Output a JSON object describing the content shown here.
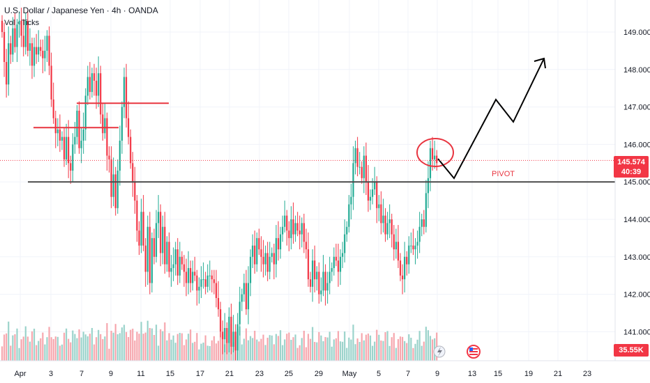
{
  "legend": {
    "title": "U.S. Dollar / Japanese Yen · 4h · OANDA",
    "volume": "Vol · Ticks"
  },
  "price_axis": {
    "ticks": [
      "149.000",
      "148.000",
      "147.000",
      "146.000",
      "145.000",
      "144.000",
      "143.000",
      "142.000",
      "141.000"
    ]
  },
  "time_axis": {
    "ticks": [
      "Apr",
      "3",
      "7",
      "9",
      "11",
      "15",
      "17",
      "21",
      "23",
      "25",
      "29",
      "May",
      "5",
      "7",
      "9",
      "13",
      "15",
      "19",
      "21",
      "23"
    ]
  },
  "current_price": {
    "value": "145.574",
    "countdown": "40:39"
  },
  "volume_badge": "35.55K",
  "annotations": {
    "pivot_label": "PIVOT"
  },
  "colors": {
    "up": "#22ab94",
    "down": "#f23645",
    "up_volume": "#9bd3cb",
    "down_volume": "#f6a7ae",
    "pivot_line": "#4a4a4a",
    "red_line": "#e8343f",
    "arrow": "#000000"
  },
  "icons": [
    "flash-icon",
    "us-flag-icon"
  ],
  "chart_data": {
    "type": "candlestick",
    "ylim": [
      140.2,
      149.9
    ],
    "closes": [
      149.0,
      148.2,
      147.6,
      148.7,
      148.4,
      149.1,
      148.6,
      149.2,
      149.3,
      148.9,
      148.6,
      149.3,
      148.5,
      148.7,
      148.1,
      148.6,
      148.4,
      148.6,
      148.5,
      148.3,
      148.5,
      148.9,
      148.1,
      147.2,
      146.7,
      146.3,
      146.4,
      146.1,
      146.2,
      145.6,
      146.2,
      145.5,
      145.3,
      146.0,
      146.2,
      146.9,
      145.9,
      146.1,
      146.4,
      147.3,
      147.8,
      147.4,
      147.9,
      147.7,
      147.3,
      147.9,
      146.8,
      146.3,
      146.7,
      145.7,
      145.6,
      144.6,
      145.2,
      144.3,
      145.3,
      146.1,
      147.0,
      147.8,
      146.7,
      146.2,
      145.5,
      145.0,
      144.5,
      143.7,
      143.3,
      144.2,
      143.3,
      142.6,
      143.8,
      142.3,
      143.5,
      143.0,
      143.9,
      144.2,
      143.1,
      143.8,
      142.8,
      143.4,
      142.6,
      142.7,
      142.8,
      143.2,
      142.5,
      143.0,
      142.8,
      142.6,
      142.3,
      142.7,
      142.3,
      142.6,
      142.5,
      142.1,
      142.2,
      142.4,
      142.4,
      142.2,
      142.5,
      142.5,
      142.4,
      142.3,
      141.9,
      141.6,
      141.0,
      140.8,
      141.1,
      140.7,
      141.4,
      140.6,
      141.0,
      140.5,
      141.2,
      141.8,
      142.0,
      142.3,
      141.6,
      142.3,
      143.0,
      143.3,
      142.8,
      143.5,
      143.2,
      143.0,
      142.8,
      143.1,
      142.6,
      143.0,
      143.1,
      142.8,
      143.5,
      143.2,
      143.6,
      143.8,
      144.1,
      143.7,
      143.5,
      144.0,
      143.6,
      143.9,
      143.7,
      143.6,
      143.9,
      143.4,
      143.2,
      142.4,
      142.2,
      142.9,
      142.4,
      142.6,
      142.0,
      142.1,
      142.6,
      142.1,
      142.3,
      142.6,
      142.7,
      143.0,
      142.9,
      142.6,
      143.0,
      143.1,
      143.6,
      143.8,
      144.4,
      144.6,
      145.5,
      145.9,
      145.4,
      145.4,
      145.1,
      145.7,
      145.0,
      144.5,
      144.6,
      144.8,
      145.0,
      144.3,
      144.4,
      143.9,
      144.1,
      143.6,
      143.9,
      144.0,
      143.6,
      143.2,
      143.4,
      142.9,
      142.5,
      142.4,
      143.0,
      142.8,
      143.3,
      143.3,
      143.2,
      143.3,
      143.4,
      143.8,
      144.0,
      143.8,
      144.7,
      145.1,
      145.9,
      145.6,
      145.7,
      145.5
    ],
    "current": 145.574,
    "pivot": 145.0,
    "resistance_levels": [
      146.45,
      147.1
    ]
  }
}
